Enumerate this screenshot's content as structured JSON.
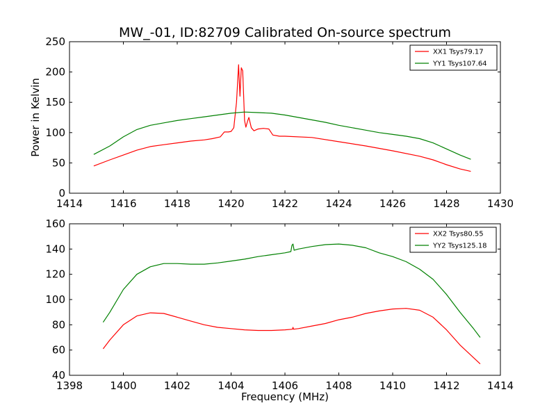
{
  "figure": {
    "title": "MW_-01, ID:82709 Calibrated On-source spectrum",
    "xlabel": "Frequency (MHz)",
    "ylabel": "Power in Kelvin"
  },
  "chart_data": [
    {
      "type": "line",
      "title": "MW_-01, ID:82709 Calibrated On-source spectrum",
      "xlabel": "",
      "ylabel": "Power in Kelvin",
      "xlim": [
        1414,
        1430
      ],
      "ylim": [
        0,
        250
      ],
      "xticks": [
        1414,
        1416,
        1418,
        1420,
        1422,
        1424,
        1426,
        1428,
        1430
      ],
      "yticks": [
        0,
        50,
        100,
        150,
        200,
        250
      ],
      "grid": false,
      "legend_position": "top-right",
      "series": [
        {
          "name": "XX1 Tsys79.17",
          "color": "#ff0000",
          "points": [
            [
              1414.9,
              45
            ],
            [
              1415.5,
              55
            ],
            [
              1416,
              63
            ],
            [
              1416.5,
              71
            ],
            [
              1417,
              77
            ],
            [
              1417.5,
              80
            ],
            [
              1418,
              83
            ],
            [
              1418.5,
              86
            ],
            [
              1419,
              88
            ],
            [
              1419.3,
              90
            ],
            [
              1419.6,
              93
            ],
            [
              1419.75,
              101
            ],
            [
              1419.9,
              101
            ],
            [
              1420.0,
              102
            ],
            [
              1420.1,
              108
            ],
            [
              1420.2,
              150
            ],
            [
              1420.28,
              212
            ],
            [
              1420.33,
              160
            ],
            [
              1420.38,
              207
            ],
            [
              1420.43,
              202
            ],
            [
              1420.5,
              120
            ],
            [
              1420.55,
              109
            ],
            [
              1420.62,
              120
            ],
            [
              1420.66,
              125
            ],
            [
              1420.75,
              108
            ],
            [
              1420.85,
              103
            ],
            [
              1421,
              106
            ],
            [
              1421.2,
              107
            ],
            [
              1421.4,
              106
            ],
            [
              1421.55,
              96
            ],
            [
              1421.8,
              94
            ],
            [
              1422,
              94
            ],
            [
              1423,
              92
            ],
            [
              1424,
              85
            ],
            [
              1425,
              78
            ],
            [
              1426,
              70
            ],
            [
              1427,
              61
            ],
            [
              1427.5,
              55
            ],
            [
              1428,
              47
            ],
            [
              1428.5,
              40
            ],
            [
              1428.9,
              36
            ]
          ]
        },
        {
          "name": "YY1 Tsys107.64",
          "color": "#008000",
          "points": [
            [
              1414.9,
              64
            ],
            [
              1415.5,
              78
            ],
            [
              1416,
              93
            ],
            [
              1416.5,
              105
            ],
            [
              1417,
              112
            ],
            [
              1417.5,
              116
            ],
            [
              1418,
              120
            ],
            [
              1418.5,
              123
            ],
            [
              1419,
              126
            ],
            [
              1419.5,
              129
            ],
            [
              1420,
              132
            ],
            [
              1420.5,
              134
            ],
            [
              1421,
              133
            ],
            [
              1421.5,
              132
            ],
            [
              1422,
              129
            ],
            [
              1422.5,
              125
            ],
            [
              1423,
              121
            ],
            [
              1423.5,
              117
            ],
            [
              1424,
              112
            ],
            [
              1424.5,
              108
            ],
            [
              1425,
              104
            ],
            [
              1425.5,
              100
            ],
            [
              1426,
              97
            ],
            [
              1426.5,
              94
            ],
            [
              1427,
              90
            ],
            [
              1427.5,
              83
            ],
            [
              1428,
              73
            ],
            [
              1428.5,
              63
            ],
            [
              1428.9,
              56
            ]
          ]
        }
      ]
    },
    {
      "type": "line",
      "title": "",
      "xlabel": "Frequency (MHz)",
      "ylabel": "",
      "xlim": [
        1398,
        1414
      ],
      "ylim": [
        40,
        160
      ],
      "xticks": [
        1398,
        1400,
        1402,
        1404,
        1406,
        1408,
        1410,
        1412,
        1414
      ],
      "yticks": [
        40,
        60,
        80,
        100,
        120,
        140,
        160
      ],
      "grid": false,
      "legend_position": "top-right",
      "series": [
        {
          "name": "XX2 Tsys80.55",
          "color": "#ff0000",
          "points": [
            [
              1399.25,
              61
            ],
            [
              1399.5,
              68
            ],
            [
              1400,
              80
            ],
            [
              1400.5,
              87
            ],
            [
              1401,
              89.5
            ],
            [
              1401.5,
              89
            ],
            [
              1402,
              86
            ],
            [
              1402.5,
              83
            ],
            [
              1403,
              80
            ],
            [
              1403.5,
              78
            ],
            [
              1404,
              77
            ],
            [
              1404.5,
              76
            ],
            [
              1405,
              75.5
            ],
            [
              1405.5,
              75.5
            ],
            [
              1406,
              76
            ],
            [
              1406.28,
              76.5
            ],
            [
              1406.3,
              78
            ],
            [
              1406.32,
              76.5
            ],
            [
              1406.5,
              77
            ],
            [
              1407,
              79
            ],
            [
              1407.5,
              81
            ],
            [
              1408,
              84
            ],
            [
              1408.5,
              86
            ],
            [
              1409,
              89
            ],
            [
              1409.5,
              91
            ],
            [
              1410,
              92.5
            ],
            [
              1410.5,
              93
            ],
            [
              1411,
              91.5
            ],
            [
              1411.5,
              86
            ],
            [
              1412,
              76
            ],
            [
              1412.5,
              64
            ],
            [
              1413,
              54
            ],
            [
              1413.25,
              49
            ]
          ]
        },
        {
          "name": "YY2 Tsys125.18",
          "color": "#008000",
          "points": [
            [
              1399.25,
              82
            ],
            [
              1399.5,
              90
            ],
            [
              1400,
              108
            ],
            [
              1400.5,
              120
            ],
            [
              1401,
              126
            ],
            [
              1401.5,
              128.5
            ],
            [
              1402,
              128.5
            ],
            [
              1402.5,
              128
            ],
            [
              1403,
              128
            ],
            [
              1403.5,
              129
            ],
            [
              1404,
              130.5
            ],
            [
              1404.5,
              132
            ],
            [
              1405,
              134
            ],
            [
              1405.5,
              135.5
            ],
            [
              1406,
              137
            ],
            [
              1406.22,
              138
            ],
            [
              1406.26,
              143
            ],
            [
              1406.3,
              144
            ],
            [
              1406.34,
              139
            ],
            [
              1406.5,
              140
            ],
            [
              1407,
              142
            ],
            [
              1407.5,
              143.5
            ],
            [
              1408,
              144
            ],
            [
              1408.5,
              143
            ],
            [
              1409,
              141
            ],
            [
              1409.5,
              137
            ],
            [
              1410,
              134
            ],
            [
              1410.5,
              130
            ],
            [
              1411,
              124
            ],
            [
              1411.5,
              116
            ],
            [
              1412,
              104
            ],
            [
              1412.5,
              90
            ],
            [
              1413,
              77
            ],
            [
              1413.25,
              70
            ]
          ]
        }
      ]
    }
  ]
}
